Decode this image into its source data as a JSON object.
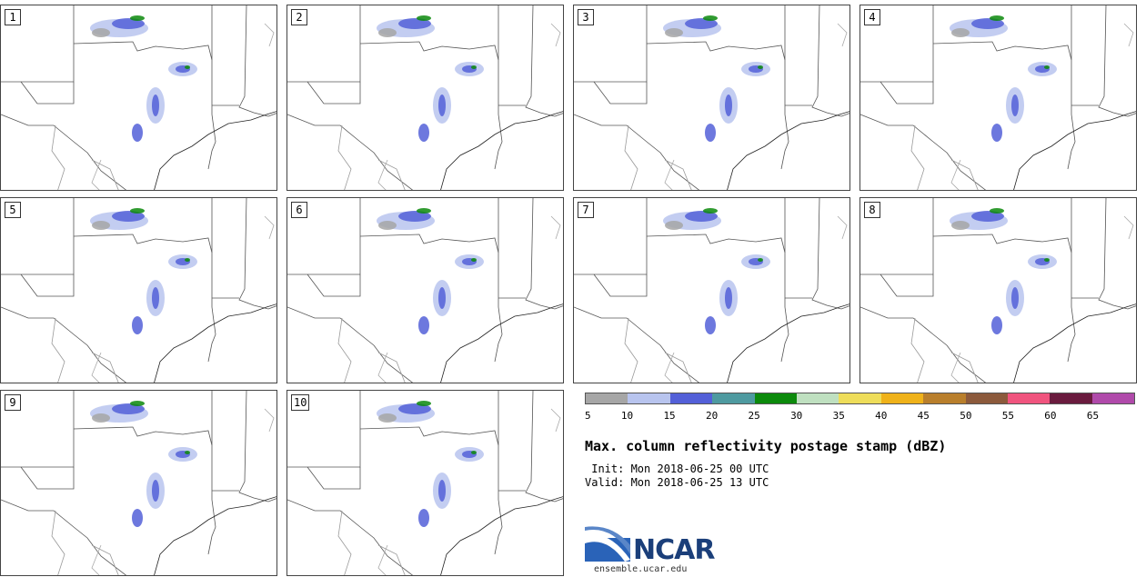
{
  "panels": [
    {
      "label": "1"
    },
    {
      "label": "2"
    },
    {
      "label": "3"
    },
    {
      "label": "4"
    },
    {
      "label": "5"
    },
    {
      "label": "6"
    },
    {
      "label": "7"
    },
    {
      "label": "8"
    },
    {
      "label": "9"
    },
    {
      "label": "10"
    }
  ],
  "colorbar": {
    "colors": [
      "#a6a6a6",
      "#b8c4ee",
      "#5360d8",
      "#4e9aa0",
      "#0c8a0c",
      "#bfe0c0",
      "#eedd5a",
      "#efb21a",
      "#b97f2c",
      "#8c5a3c",
      "#f0547e",
      "#6a1b3e",
      "#b04aaa"
    ],
    "ticks": [
      "5",
      "10",
      "15",
      "20",
      "25",
      "30",
      "35",
      "40",
      "45",
      "50",
      "55",
      "60",
      "65"
    ]
  },
  "title": "Max. column reflectivity postage stamp (dBZ)",
  "init": " Init: Mon 2018-06-25 00 UTC",
  "valid": "Valid: Mon 2018-06-25 13 UTC",
  "logo": {
    "text": "NCAR",
    "url": "ensemble.ucar.edu"
  }
}
